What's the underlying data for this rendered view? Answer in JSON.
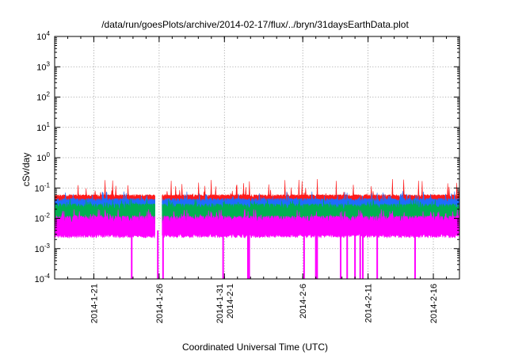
{
  "chart_data": {
    "type": "area",
    "title": "/data/run/goesPlots/archive/2014-02-17/flux/../bryn/31daysEarthData.plot",
    "xlabel": "Coordinated Universal Time (UTC)",
    "ylabel": "cSv/day",
    "y_scale": "log",
    "ylim": [
      0.0001,
      10000
    ],
    "xlim": [
      "2014-01-18",
      "2014-02-18"
    ],
    "grid": true,
    "y_ticks": [
      {
        "base": "10",
        "exp": "-4",
        "value": 0.0001
      },
      {
        "base": "10",
        "exp": "-3",
        "value": 0.001
      },
      {
        "base": "10",
        "exp": "-2",
        "value": 0.01
      },
      {
        "base": "10",
        "exp": "-1",
        "value": 0.1
      },
      {
        "base": "10",
        "exp": "0",
        "value": 1
      },
      {
        "base": "10",
        "exp": "1",
        "value": 10
      },
      {
        "base": "10",
        "exp": "2",
        "value": 100
      },
      {
        "base": "10",
        "exp": "3",
        "value": 1000
      },
      {
        "base": "10",
        "exp": "4",
        "value": 10000
      }
    ],
    "x_ticks": [
      {
        "date": "2014-01-21",
        "labels": [
          "2014-1-21"
        ]
      },
      {
        "date": "2014-01-26",
        "labels": [
          "2014-1-26"
        ]
      },
      {
        "date": "2014-01-31",
        "labels": [
          "2014-1-31",
          "2014-2-1"
        ]
      },
      {
        "date": "2014-02-06",
        "labels": [
          "2014-2-6"
        ]
      },
      {
        "date": "2014-02-11",
        "labels": [
          "2014-2-11"
        ]
      },
      {
        "date": "2014-02-16",
        "labels": [
          "2014-2-16"
        ]
      }
    ],
    "series": [
      {
        "color": "#ff00ff",
        "low": 0.003,
        "high": 0.012,
        "peak": 0.02
      },
      {
        "color": "#00b050",
        "low": 0.008,
        "high": 0.03,
        "peak": 0.045
      },
      {
        "color": "#1e6eff",
        "low": 0.02,
        "high": 0.045,
        "peak": 0.08
      },
      {
        "color": "#ff1a1a",
        "low": 0.035,
        "high": 0.06,
        "peak": 0.2
      }
    ],
    "dropouts": [
      {
        "date": "2014-01-23.9",
        "to": 0.0001
      },
      {
        "date": "2014-01-25.9",
        "to": 0.0001
      },
      {
        "date": "2014-01-26.3",
        "to": 0.0001
      },
      {
        "date": "2014-01-30.9",
        "to": 0.0001
      },
      {
        "date": "2014-02-01.8",
        "to": 0.0001
      },
      {
        "date": "2014-02-01.9",
        "to": 0.0001
      },
      {
        "date": "2014-02-06.1",
        "to": 0.0001
      },
      {
        "date": "2014-02-07.0",
        "to": 0.0001
      },
      {
        "date": "2014-02-07.1",
        "to": 0.0001
      },
      {
        "date": "2014-02-08.9",
        "to": 0.0001
      },
      {
        "date": "2014-02-09.4",
        "to": 0.0001
      },
      {
        "date": "2014-02-10.0",
        "to": 0.0001
      },
      {
        "date": "2014-02-10.4",
        "to": 0.0001
      },
      {
        "date": "2014-02-10.6",
        "to": 0.0001
      },
      {
        "date": "2014-02-11.7",
        "to": 0.0001
      },
      {
        "date": "2014-02-14.6",
        "to": 0.0001
      }
    ],
    "gap": {
      "from": "2014-01-25.7",
      "to": "2014-01-26.2"
    }
  }
}
